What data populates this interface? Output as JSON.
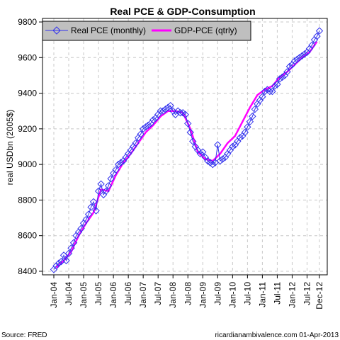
{
  "chart_data": {
    "type": "line",
    "title": "Real PCE & GDP-Consumption",
    "ylabel": "real USDbn (2005$)",
    "xlabel": "",
    "ylim": [
      8380,
      9820
    ],
    "yticks": [
      8400,
      8600,
      8800,
      9000,
      9200,
      9400,
      9600,
      9800
    ],
    "xtick_labels": [
      "Jan-04",
      "Jul-04",
      "Jan-05",
      "Jul-05",
      "Jan-06",
      "Jul-06",
      "Jan-07",
      "Jul-07",
      "Jan-08",
      "Jul-08",
      "Jan-09",
      "Jul-09",
      "Jan-10",
      "Jul-10",
      "Jan-11",
      "Jul-11",
      "Jan-12",
      "Jul-12",
      "Dec-12"
    ],
    "grid": true,
    "legend_position": "top-left",
    "series": [
      {
        "name": "Real PCE (monthly)",
        "color": "#3333ee",
        "marker": "diamond",
        "values": [
          8410,
          8430,
          8445,
          8455,
          8490,
          8460,
          8500,
          8530,
          8560,
          8600,
          8620,
          8640,
          8670,
          8690,
          8720,
          8760,
          8790,
          8740,
          8850,
          8890,
          8830,
          8850,
          8880,
          8920,
          8950,
          8970,
          9000,
          9010,
          9020,
          9040,
          9060,
          9080,
          9100,
          9120,
          9150,
          9170,
          9200,
          9210,
          9220,
          9230,
          9250,
          9260,
          9280,
          9300,
          9300,
          9310,
          9320,
          9330,
          9300,
          9280,
          9300,
          9290,
          9290,
          9280,
          9230,
          9180,
          9130,
          9100,
          9080,
          9060,
          9070,
          9040,
          9020,
          9010,
          9000,
          9010,
          9110,
          9020,
          9030,
          9040,
          9060,
          9080,
          9100,
          9110,
          9130,
          9150,
          9160,
          9180,
          9210,
          9240,
          9270,
          9310,
          9340,
          9360,
          9380,
          9410,
          9420,
          9410,
          9410,
          9440,
          9450,
          9480,
          9490,
          9500,
          9520,
          9550,
          9560,
          9580,
          9590,
          9600,
          9610,
          9620,
          9630,
          9650,
          9670,
          9700,
          9720,
          9750
        ]
      },
      {
        "name": "GDP-PCE (qtrly)",
        "color": "#ff00ff",
        "quarter_month_index": [
          1,
          4,
          7,
          10,
          13,
          16,
          19,
          22,
          25,
          28,
          31,
          34,
          37,
          40,
          43,
          46,
          49,
          52,
          55,
          58,
          61,
          64,
          67,
          70,
          73,
          76,
          79,
          82,
          85,
          88,
          91,
          94,
          97,
          100,
          103,
          106
        ],
        "values": [
          8420,
          8460,
          8510,
          8600,
          8670,
          8730,
          8860,
          8850,
          8940,
          9010,
          9060,
          9120,
          9180,
          9220,
          9270,
          9300,
          9300,
          9290,
          9200,
          9070,
          9030,
          9020,
          9060,
          9120,
          9160,
          9240,
          9320,
          9390,
          9420,
          9440,
          9490,
          9520,
          9560,
          9600,
          9630,
          9690
        ]
      }
    ]
  },
  "footer": {
    "source": "Source: FRED",
    "credit": "ricardianambivalence.com    01-Apr-2013"
  }
}
